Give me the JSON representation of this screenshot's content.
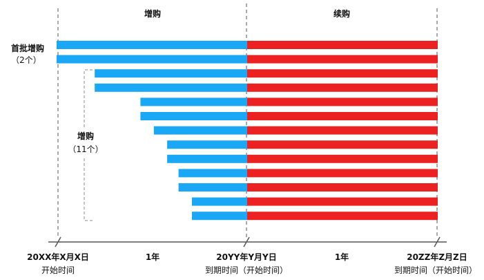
{
  "phases": {
    "left": "增购",
    "right": "续购"
  },
  "groups": {
    "first": {
      "line1": "首批增购",
      "line2": "（2个）"
    },
    "second": {
      "line1": "增购",
      "line2": "（11个）"
    }
  },
  "axis": {
    "start_date": "20XX年X月X日",
    "start_note": "开始时间",
    "mid_date": "20YY年Y月Y日",
    "mid_note": "到期时间（开始时间）",
    "end_date": "20ZZ年Z月Z日",
    "end_note": "到期时间（开始时间）",
    "span_left": "1年",
    "span_right": "1年"
  },
  "colors": {
    "blue": "#1aa7f5",
    "red": "#ec2222",
    "axis": "#555555",
    "bracket": "#888888"
  },
  "bar_starts": [
    0,
    0,
    0.2,
    0.2,
    0.44,
    0.44,
    0.51,
    0.58,
    0.58,
    0.64,
    0.64,
    0.71,
    0.71
  ]
}
